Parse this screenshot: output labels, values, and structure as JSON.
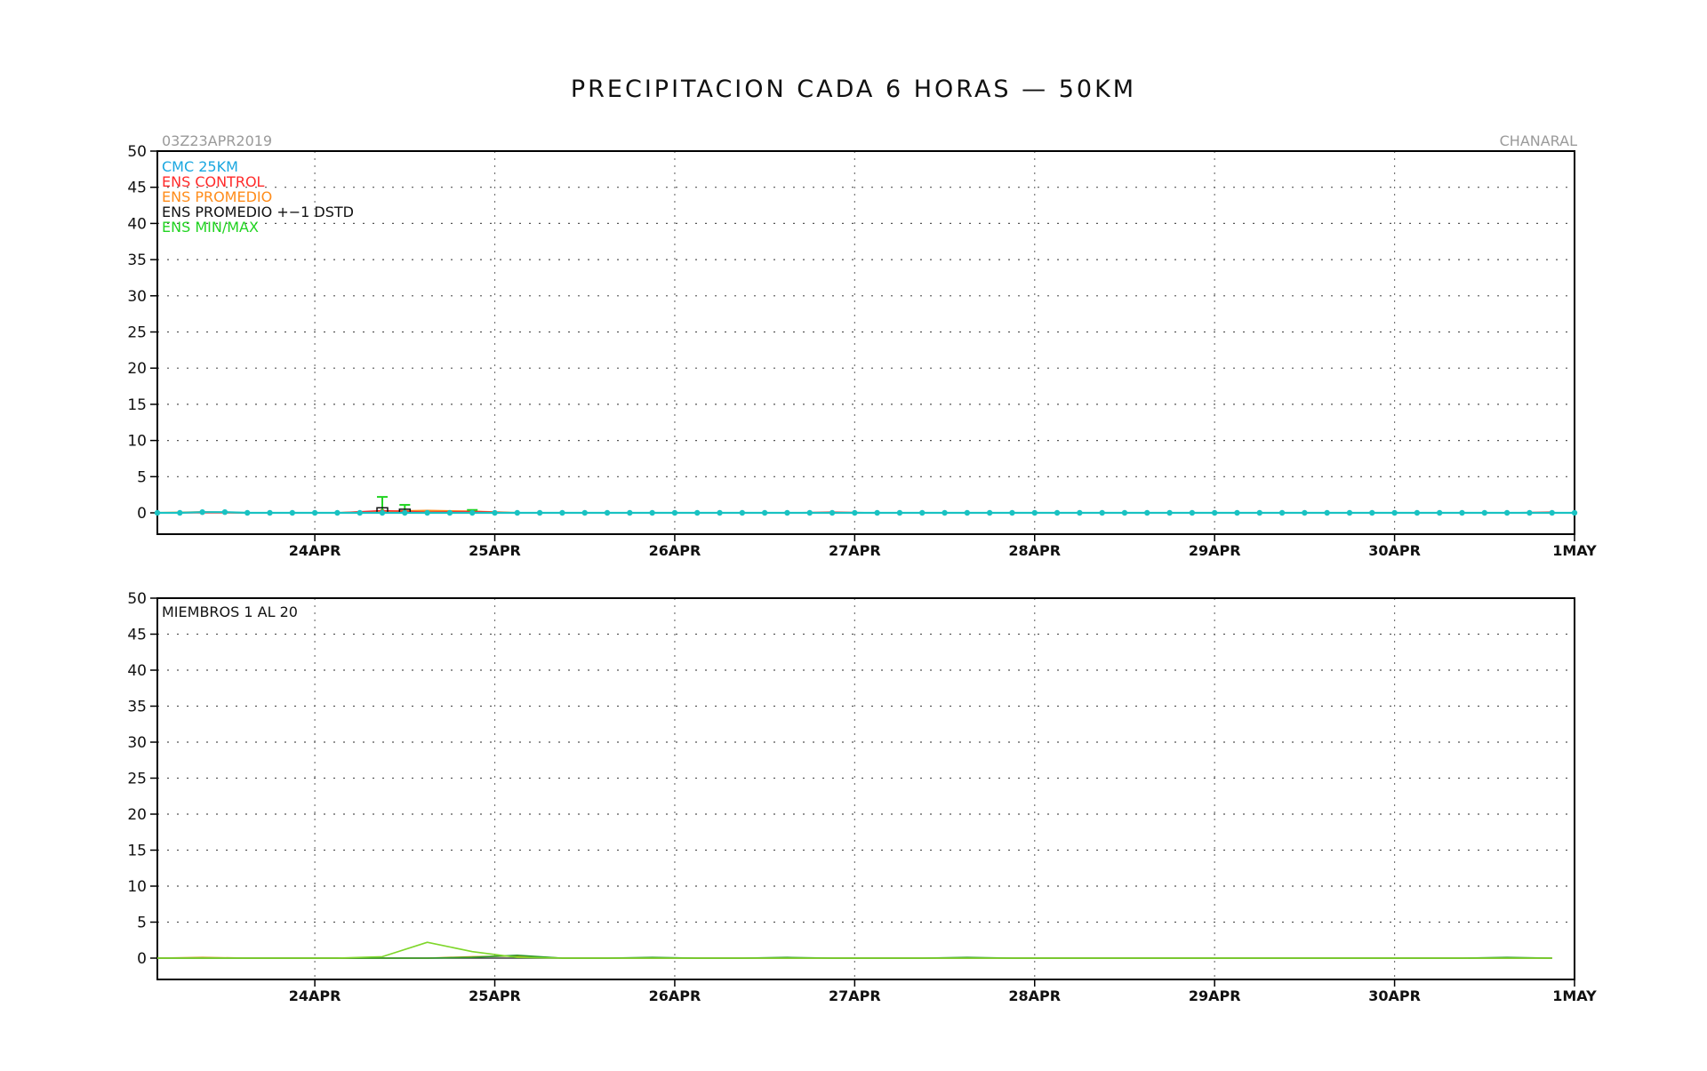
{
  "title": "PRECIPITACION CADA 6 HORAS — 50KM",
  "init_time": "03Z23APR2019",
  "location": "CHANARAL",
  "colors": {
    "cmc": "#1aa7e0",
    "control": "#ff2a2a",
    "promedio": "#ff8c1a",
    "dstd": "#111111",
    "minmax": "#22d422",
    "member_line": "#7ed62a",
    "cmc_line": "#19c2c2"
  },
  "chart_data": [
    {
      "type": "line",
      "legend": [
        {
          "label": "CMC 25KM",
          "color_key": "cmc"
        },
        {
          "label": "ENS CONTROL",
          "color_key": "control"
        },
        {
          "label": "ENS PROMEDIO",
          "color_key": "promedio"
        },
        {
          "label": "ENS PROMEDIO +−1 DSTD",
          "color_key": "dstd"
        },
        {
          "label": "ENS MIN/MAX",
          "color_key": "minmax"
        }
      ],
      "xlim_days": [
        23.125,
        31.0
      ],
      "ylim": [
        -3,
        50
      ],
      "yticks": [
        0,
        5,
        10,
        15,
        20,
        25,
        30,
        35,
        40,
        45,
        50
      ],
      "xtick_labels": [
        {
          "day": 24,
          "label": "24APR"
        },
        {
          "day": 25,
          "label": "25APR"
        },
        {
          "day": 26,
          "label": "26APR"
        },
        {
          "day": 27,
          "label": "27APR"
        },
        {
          "day": 28,
          "label": "28APR"
        },
        {
          "day": 29,
          "label": "29APR"
        },
        {
          "day": 30,
          "label": "30APR"
        },
        {
          "day": 31,
          "label": "1MAY"
        }
      ],
      "cmc_25km": {
        "start_day": 23.125,
        "step_days": 0.125,
        "values": [
          0,
          0,
          0.1,
          0.1,
          0,
          0,
          0,
          0,
          0,
          0,
          0,
          0,
          0,
          0,
          0,
          0,
          0,
          0,
          0,
          0,
          0,
          0,
          0,
          0,
          0,
          0,
          0,
          0,
          0,
          0,
          0,
          0,
          0,
          0,
          0,
          0,
          0,
          0,
          0,
          0,
          0,
          0,
          0,
          0,
          0,
          0,
          0,
          0,
          0,
          0,
          0,
          0,
          0,
          0,
          0,
          0,
          0,
          0,
          0,
          0,
          0,
          0,
          0,
          0
        ]
      },
      "ens_control": {
        "start_day": 23.125,
        "step_days": 0.25,
        "values": [
          0,
          0,
          0,
          0,
          0,
          0.3,
          0.1,
          0.2,
          0,
          0,
          0,
          0,
          0,
          0,
          0,
          0.1,
          0,
          0,
          0,
          0,
          0,
          0,
          0,
          0,
          0,
          0,
          0,
          0,
          0,
          0,
          0,
          0.1
        ]
      },
      "ens_promedio": {
        "start_day": 23.125,
        "step_days": 0.25,
        "values": [
          0,
          0.1,
          0,
          0,
          0,
          0.2,
          0.3,
          0.2,
          0,
          0,
          0,
          0,
          0,
          0,
          0,
          0,
          0,
          0,
          0,
          0,
          0,
          0,
          0,
          0,
          0,
          0,
          0,
          0,
          0,
          0,
          0,
          0
        ]
      },
      "ens_dstd": [
        {
          "day": 24.375,
          "low": 0,
          "high": 0.7
        },
        {
          "day": 24.5,
          "low": 0,
          "high": 0.5
        }
      ],
      "ens_minmax": [
        {
          "day": 24.375,
          "min": 0,
          "max": 2.2
        },
        {
          "day": 24.5,
          "min": 0,
          "max": 1.1
        },
        {
          "day": 24.875,
          "min": 0,
          "max": 0.4
        }
      ]
    },
    {
      "type": "line",
      "annotation": "MIEMBROS 1 AL 20",
      "xlim_days": [
        23.125,
        31.0
      ],
      "ylim": [
        -3,
        50
      ],
      "yticks": [
        0,
        5,
        10,
        15,
        20,
        25,
        30,
        35,
        40,
        45,
        50
      ],
      "xtick_labels": [
        {
          "day": 24,
          "label": "24APR"
        },
        {
          "day": 25,
          "label": "25APR"
        },
        {
          "day": 26,
          "label": "26APR"
        },
        {
          "day": 27,
          "label": "27APR"
        },
        {
          "day": 28,
          "label": "28APR"
        },
        {
          "day": 29,
          "label": "29APR"
        },
        {
          "day": 30,
          "label": "30APR"
        },
        {
          "day": 31,
          "label": "1MAY"
        }
      ],
      "members": [
        {
          "color": "#7ed62a",
          "start_day": 23.125,
          "step_days": 0.25,
          "values": [
            0,
            0,
            0,
            0,
            0,
            0.2,
            2.2,
            0.9,
            0.1,
            0,
            0,
            0,
            0,
            0,
            0,
            0,
            0,
            0,
            0,
            0,
            0,
            0,
            0,
            0,
            0,
            0,
            0,
            0,
            0,
            0,
            0,
            0
          ]
        },
        {
          "color": "#2a9a2a",
          "start_day": 23.125,
          "step_days": 0.25,
          "values": [
            0,
            0,
            0,
            0,
            0,
            0,
            0,
            0.1,
            0.4,
            0,
            0,
            0.1,
            0,
            0,
            0.1,
            0,
            0,
            0,
            0.1,
            0,
            0,
            0,
            0,
            0,
            0,
            0,
            0,
            0,
            0,
            0,
            0.1,
            0
          ]
        },
        {
          "color": "#c8a020",
          "start_day": 23.125,
          "step_days": 0.25,
          "values": [
            0,
            0.1,
            0,
            0,
            0,
            0,
            0,
            0.2,
            0.3,
            0,
            0,
            0,
            0,
            0,
            0,
            0,
            0,
            0,
            0,
            0,
            0,
            0,
            0,
            0,
            0,
            0,
            0,
            0,
            0,
            0,
            0,
            0
          ]
        },
        {
          "color": "#444444",
          "start_day": 23.125,
          "step_days": 0.25,
          "values": [
            0,
            0,
            0,
            0,
            0,
            0,
            0,
            0,
            0,
            0,
            0,
            0,
            0,
            0,
            0,
            0,
            0,
            0,
            0,
            0,
            0,
            0,
            0,
            0,
            0,
            0,
            0,
            0,
            0,
            0,
            0,
            0
          ]
        }
      ]
    }
  ]
}
